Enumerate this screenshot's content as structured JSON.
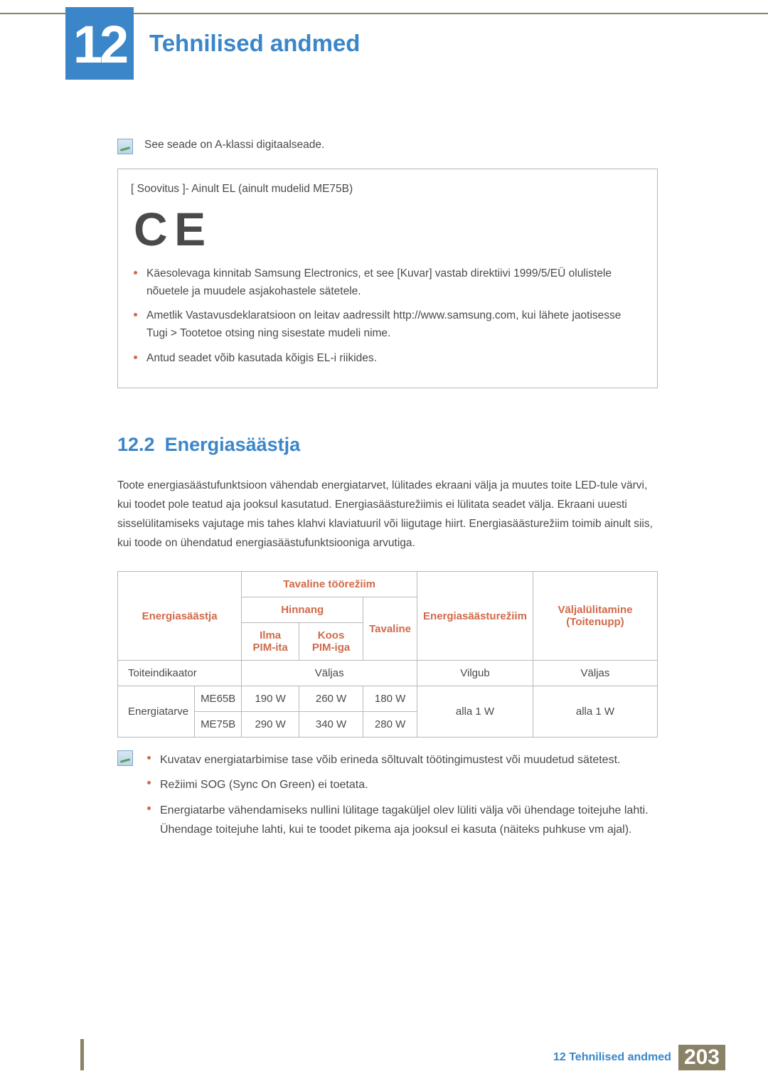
{
  "chapter": {
    "number": "12",
    "title": "Tehnilised andmed"
  },
  "note1": "See seade on A-klassi digitaalseade.",
  "advice": {
    "title": "[ Soovitus ]- Ainult EL (ainult mudelid ME75B)",
    "bullets": [
      "Käesolevaga kinnitab Samsung Electronics, et see [Kuvar] vastab direktiivi 1999/5/EÜ olulistele nõuetele ja muudele asjakohastele sätetele.",
      "Ametlik Vastavusdeklaratsioon on leitav aadressilt http://www.samsung.com, kui lähete jaotisesse Tugi > Tootetoe otsing ning sisestate mudeli nime.",
      "Antud seadet võib kasutada kõigis EL-i riikides."
    ]
  },
  "section": {
    "num": "12.2",
    "title": "Energiasäästja"
  },
  "para": "Toote energiasäästufunktsioon vähendab energiatarvet, lülitades ekraani välja ja muutes toite LED-tule värvi, kui toodet pole teatud aja jooksul kasutatud. Energiasäästurežiimis ei lülitata seadet välja. Ekraani uuesti sisselülitamiseks vajutage mis tahes klahvi klaviatuuril või liigutage hiirt. Energiasäästurežiim toimib ainult siis, kui toode on ühendatud energiasäästufunktsiooniga arvutiga.",
  "table": {
    "headers": {
      "energysave": "Energiasäästja",
      "normal_mode": "Tavaline töörežiim",
      "rating": "Hinnang",
      "no_pim": "Ilma PIM-ita",
      "with_pim": "Koos PIM-iga",
      "normal": "Tavaline",
      "save_mode": "Energiasäästurežiim",
      "off": "Väljalülitamine (Toitenupp)"
    },
    "rows": {
      "indicator_label": "Toiteindikaator",
      "indicator_normal": "Väljas",
      "indicator_save": "Vilgub",
      "indicator_off": "Väljas",
      "power_label": "Energiatarve",
      "models": [
        "ME65B",
        "ME75B"
      ],
      "me65b": [
        "190 W",
        "260 W",
        "180 W"
      ],
      "me75b": [
        "290 W",
        "340 W",
        "280 W"
      ],
      "under1w": "alla 1 W"
    }
  },
  "footnotes": [
    "Kuvatav energiatarbimise tase võib erineda sõltuvalt töötingimustest või muudetud sätetest.",
    "Režiimi SOG (Sync On Green) ei toetata.",
    "Energiatarbe vähendamiseks nullini lülitage tagaküljel olev lüliti välja või ühendage toitejuhe lahti. Ühendage toitejuhe lahti, kui te toodet pikema aja jooksul ei kasuta (näiteks puhkuse vm ajal)."
  ],
  "footer": {
    "label": "12 Tehnilised andmed",
    "page": "203"
  }
}
